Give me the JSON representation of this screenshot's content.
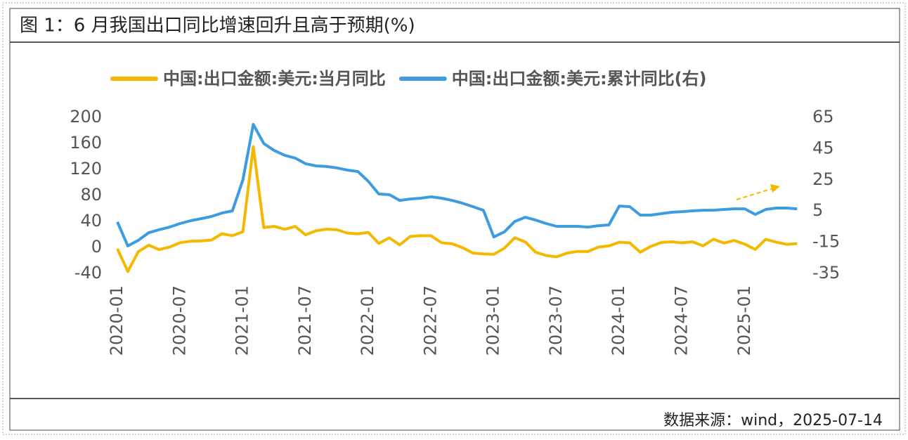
{
  "chart_data": {
    "type": "line",
    "title": "图 1：6 月我国出口同比增速回升且高于预期(%)",
    "source": "数据来源：wind，2025-07-14",
    "categories": [
      "2020-01",
      null,
      null,
      null,
      null,
      null,
      "2020-07",
      null,
      null,
      null,
      null,
      null,
      "2021-01",
      null,
      null,
      null,
      null,
      null,
      "2021-07",
      null,
      null,
      null,
      null,
      null,
      "2022-01",
      null,
      null,
      null,
      null,
      null,
      "2022-07",
      null,
      null,
      null,
      null,
      null,
      "2023-01",
      null,
      null,
      null,
      null,
      null,
      "2023-07",
      null,
      null,
      null,
      null,
      null,
      "2024-01",
      null,
      null,
      null,
      null,
      null,
      "2024-07",
      null,
      null,
      null,
      null,
      null,
      "2025-01",
      null,
      null,
      null,
      null,
      null
    ],
    "series": [
      {
        "name": "中国:出口金额:美元:当月同比",
        "color": "#f5b800",
        "values": [
          -2,
          -37,
          -6.6,
          3.5,
          -3.3,
          0.5,
          7.2,
          9.5,
          9.9,
          11.4,
          21.1,
          18.1,
          24,
          154.9,
          30.6,
          32.3,
          27.9,
          32.2,
          19.3,
          25.6,
          28.1,
          27.1,
          22,
          20.9,
          23,
          6,
          14.7,
          3.9,
          16.9,
          17.9,
          18,
          7.1,
          5.7,
          -0.3,
          -8.7,
          -9.9,
          -10.5,
          -1.3,
          14.8,
          8.5,
          -7.5,
          -12.4,
          -14.5,
          -8.8,
          -6.2,
          -6.4,
          0.5,
          2.3,
          8,
          7,
          -7.5,
          1.5,
          7.6,
          8.6,
          7,
          8.7,
          2.4,
          12.7,
          6.7,
          10.7,
          5,
          -3,
          12.4,
          8.1,
          4.8,
          5.8
        ]
      },
      {
        "name": "中国:出口金额:美元:累计同比(右)",
        "color": "#3d9be0",
        "axis": "y2",
        "values": [
          -2,
          -17.4,
          -13.8,
          -8.9,
          -7,
          -5.3,
          -3,
          -1.2,
          0.1,
          1.5,
          3.7,
          5.1,
          24.9,
          60.5,
          48.3,
          43.8,
          40.7,
          38.9,
          35.3,
          33.9,
          33.5,
          32.6,
          31.2,
          30.3,
          24,
          15.9,
          15.5,
          11.8,
          12.7,
          13.2,
          14.1,
          13.2,
          11.8,
          10,
          7.8,
          5.5,
          -11.6,
          -8.4,
          -1.7,
          1,
          -0.8,
          -3,
          -4.8,
          -4.8,
          -4.8,
          -5.3,
          -4.4,
          -3.9,
          8.2,
          7.8,
          2.4,
          2.4,
          3.3,
          4.2,
          4.6,
          5.1,
          5.5,
          5.5,
          6,
          6.4,
          6.4,
          2.8,
          6,
          6.9,
          6.9,
          6.4
        ]
      }
    ],
    "ylim": [
      -40,
      200
    ],
    "yticks": [
      -40,
      0,
      40,
      80,
      120,
      160,
      200
    ],
    "y2lim": [
      -35,
      65
    ],
    "y2ticks": [
      -35,
      -15,
      5,
      25,
      45,
      65
    ],
    "grid": false
  }
}
